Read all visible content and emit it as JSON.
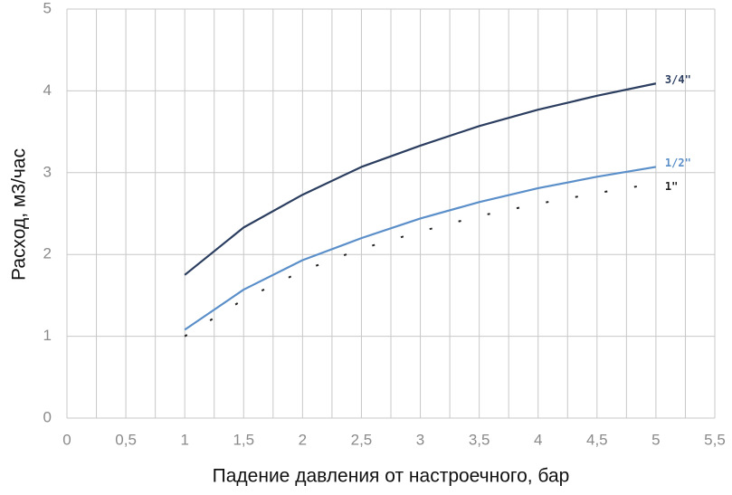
{
  "chart_data": {
    "type": "line",
    "x_label": "Падение давления от настроечного, бар",
    "y_label": "Расход, м3/час",
    "x": [
      1,
      1.5,
      2,
      2.5,
      3,
      3.5,
      4,
      4.5,
      5
    ],
    "series": [
      {
        "name": "3/4\"",
        "color": "#2c3e60",
        "values": [
          1.75,
          2.33,
          2.73,
          3.07,
          3.33,
          3.57,
          3.77,
          3.94,
          4.09
        ]
      },
      {
        "name": "1/2\"",
        "color": "#5b8fc9",
        "values": [
          1.08,
          1.57,
          1.93,
          2.2,
          2.44,
          2.64,
          2.81,
          2.95,
          3.07
        ]
      },
      {
        "name": "1\"",
        "color": "#222222",
        "dashed": true,
        "values": [
          1.0,
          1.45,
          1.8,
          2.07,
          2.28,
          2.47,
          2.62,
          2.75,
          2.87
        ]
      }
    ],
    "xlim": [
      0,
      5.5
    ],
    "xticks": [
      0,
      {
        "value": 0.5,
        "label": "0,5"
      },
      1,
      {
        "value": 1.5,
        "label": "1,5"
      },
      2,
      {
        "value": 2.5,
        "label": "2,5"
      },
      3,
      {
        "value": 3.5,
        "label": "3,5"
      },
      4,
      {
        "value": 4.5,
        "label": "4,5"
      },
      5,
      {
        "value": 5.5,
        "label": "5,5"
      }
    ],
    "ylim": [
      0,
      5
    ],
    "yticks": [
      0,
      1,
      2,
      3,
      4,
      5
    ],
    "grid": true
  }
}
